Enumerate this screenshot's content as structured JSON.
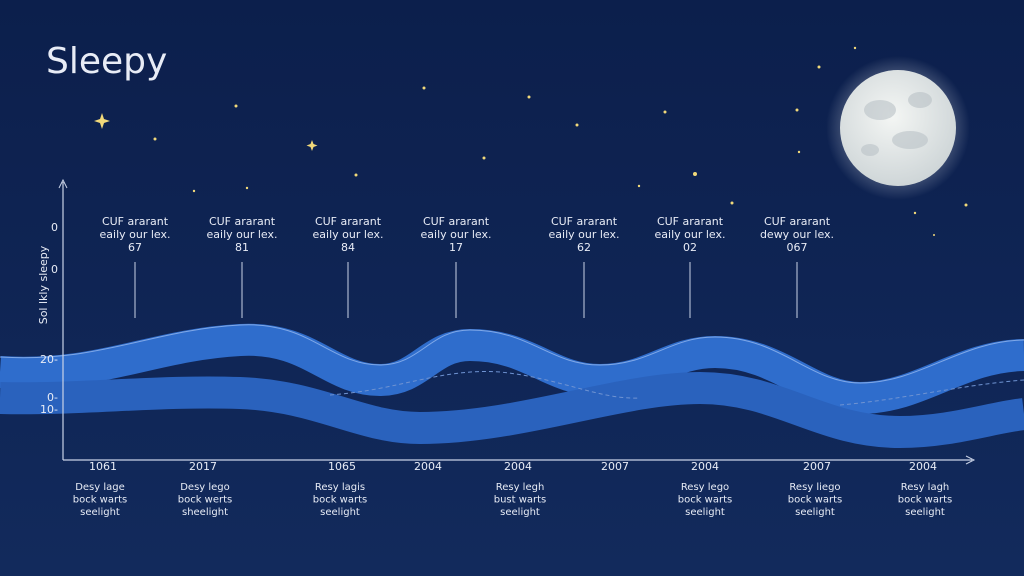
{
  "header": {
    "title": "Sleepy"
  },
  "y_axis": {
    "label": "Sol lkly  sleepy",
    "ticks": [
      "0",
      "0",
      "20-",
      "0-",
      "10-"
    ]
  },
  "annotations": [
    {
      "line1": "CUF ararant",
      "line2": "eaily our lex.",
      "value": "67"
    },
    {
      "line1": "CUF ararant",
      "line2": "eaily our lex.",
      "value": "81"
    },
    {
      "line1": "CUF ararant",
      "line2": "eaily our lex.",
      "value": "84"
    },
    {
      "line1": "CUF ararant",
      "line2": "eaily our lex.",
      "value": "17"
    },
    {
      "line1": "CUF ararant",
      "line2": "eaily our lex.",
      "value": "62"
    },
    {
      "line1": "CUF ararant",
      "line2": "eaily our lex.",
      "value": "02"
    },
    {
      "line1": "CUF ararant",
      "line2": "dewy our lex.",
      "value": "067"
    }
  ],
  "x_labels": [
    "1061",
    "2017",
    "1065",
    "2004",
    "2004",
    "2007",
    "2004",
    "2007",
    "2004"
  ],
  "captions": [
    [
      "Desy lage",
      "bock warts",
      "seelight"
    ],
    [
      "Desy lego",
      "bock werts",
      "sheelight"
    ],
    [
      "Resy lagis",
      "bock warts",
      "seelight"
    ],
    [
      "Resy legh",
      "bust warts",
      "seelight"
    ],
    [
      "Resy lego",
      "bock warts",
      "seelight"
    ],
    [
      "Resy liego",
      "bock warts",
      "seelight"
    ],
    [
      "Resy lagh",
      "bock warts",
      "seelight"
    ]
  ]
}
